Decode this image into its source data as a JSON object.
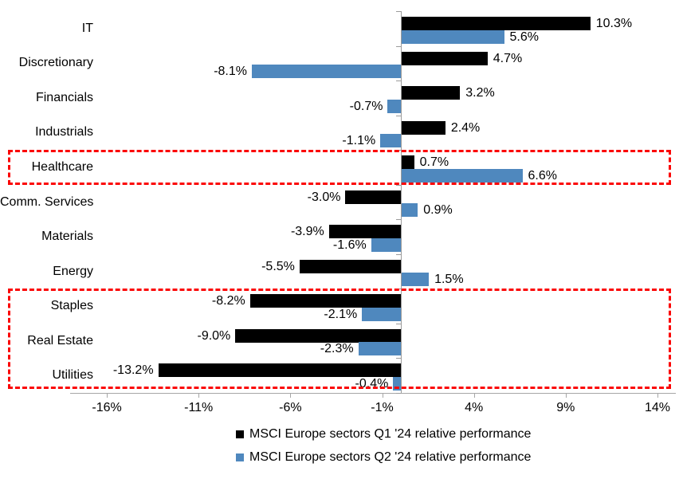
{
  "chart_data": {
    "type": "bar",
    "orientation": "horizontal",
    "title": "",
    "categories": [
      "IT",
      "Discretionary",
      "Financials",
      "Industrials",
      "Healthcare",
      "Comm. Services",
      "Materials",
      "Energy",
      "Staples",
      "Real Estate",
      "Utilities"
    ],
    "series": [
      {
        "name": "MSCI Europe sectors Q1 '24 relative performance",
        "color": "#000000",
        "values": [
          10.3,
          4.7,
          3.2,
          2.4,
          0.7,
          -3.0,
          -3.9,
          -5.5,
          -8.2,
          -9.0,
          -13.2
        ],
        "labels": [
          "10.3%",
          "4.7%",
          "3.2%",
          "2.4%",
          "0.7%",
          "-3.0%",
          "-3.9%",
          "-5.5%",
          "-8.2%",
          "-9.0%",
          "-13.2%"
        ]
      },
      {
        "name": "MSCI Europe sectors Q2 '24 relative performance",
        "color": "#4f88be",
        "values": [
          5.6,
          -8.1,
          -0.7,
          -1.1,
          6.6,
          0.9,
          -1.6,
          1.5,
          -2.1,
          -2.3,
          -0.4
        ],
        "labels": [
          "5.6%",
          "-8.1%",
          "-0.7%",
          "-1.1%",
          "6.6%",
          "0.9%",
          "-1.6%",
          "1.5%",
          "-2.1%",
          "-2.3%",
          "-0.4%"
        ]
      }
    ],
    "xlabel": "",
    "ylabel": "",
    "xlim": [
      -18,
      15
    ],
    "x_ticks": [
      {
        "value": -16,
        "label": "-16%"
      },
      {
        "value": -11,
        "label": "-11%"
      },
      {
        "value": -6,
        "label": "-6%"
      },
      {
        "value": -1,
        "label": "-1%"
      },
      {
        "value": 4,
        "label": "4%"
      },
      {
        "value": 9,
        "label": "9%"
      },
      {
        "value": 14,
        "label": "14%"
      }
    ],
    "grid": false,
    "legend_position": "bottom",
    "annotations": {
      "highlight_color": "#fb0404",
      "highlight_boxes": [
        {
          "rows": [
            "Healthcare"
          ],
          "start_index": 4,
          "end_index": 4
        },
        {
          "rows": [
            "Staples",
            "Real Estate",
            "Utilities"
          ],
          "start_index": 8,
          "end_index": 10
        }
      ]
    },
    "axis_color": "#a6a6a6"
  },
  "legend": {
    "q1_label": "MSCI Europe sectors Q1 '24 relative performance",
    "q2_label": "MSCI Europe sectors Q2 '24 relative performance"
  }
}
